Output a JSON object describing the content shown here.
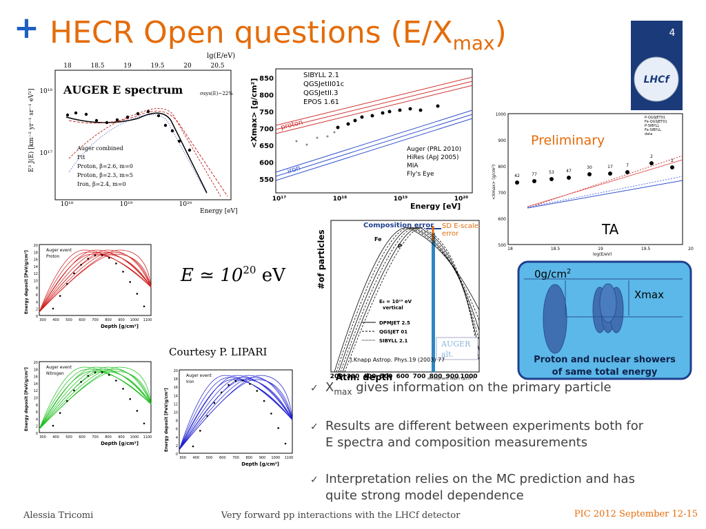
{
  "header": {
    "plus": "+",
    "title": "HECR Open questions (E/X",
    "title_sub": "max",
    "title_end": ")",
    "page_number": "4",
    "logo": "LHCf"
  },
  "auger_plot": {
    "label": "AUGER E spectrum",
    "top_axis_title": "lg(E/eV)",
    "top_ticks": [
      "18",
      "18.5",
      "19",
      "19.5",
      "20",
      "20.5"
    ],
    "y_title": "E³ J(E) [km⁻² yr⁻¹ sr⁻¹ eV²]",
    "y_ticks": [
      "10¹⁸",
      "10¹⁷"
    ],
    "x_ticks": [
      "10¹⁸",
      "10¹⁹",
      "10²⁰"
    ],
    "x_title": "Energy [eV]",
    "annotation": "σsys(E)~22%",
    "legend": [
      "Auger combined",
      "Fit",
      "Proton, β=2.6,  m=0",
      "Proton, β=2.3,  m=5",
      "Iron,     β=2.4,  m=0"
    ]
  },
  "xmax_plot": {
    "y_title": "<Xmax> [g/cm²]",
    "y_ticks": [
      "850",
      "800",
      "750",
      "700",
      "650",
      "600",
      "550"
    ],
    "x_ticks": [
      "10¹⁷",
      "10¹⁸",
      "10¹⁹",
      "10²⁰"
    ],
    "x_title": "Energy   [eV]",
    "models": [
      "SIBYLL 2.1",
      "QGSJetII01c",
      "QGSJetII.3",
      "EPOS 1.61"
    ],
    "proton": "proton",
    "iron": "iron",
    "experiments": [
      "Auger (PRL 2010)",
      "HiRes (ApJ 2005)",
      "MIA",
      "Fly's Eye"
    ]
  },
  "ta_plot": {
    "y_ticks": [
      "1000",
      "900",
      "800",
      "700",
      "600",
      "500"
    ],
    "x_ticks": [
      "18",
      "18.5",
      "19",
      "19.5",
      "20"
    ],
    "x_title": "log(E/eV)",
    "y_title": "<Xmax> (g/cm²)",
    "legend": [
      "P-QGSJET01",
      "Fe-QGSJET01",
      "P-SIBYLL",
      "Fe-SIBYLL",
      "data"
    ],
    "preliminary": "Preliminary",
    "counts": [
      "42",
      "77",
      "53",
      "47",
      "30",
      "17",
      "7",
      "2",
      "2"
    ],
    "label": "TA"
  },
  "profile_plots": [
    {
      "legend": [
        "Auger event",
        "Proton"
      ],
      "y_title": "Energy deposit  [PeV/g/cm²]",
      "y_ticks": [
        "20",
        "18",
        "16",
        "14",
        "12",
        "10",
        "8",
        "6",
        "4",
        "2",
        "0"
      ],
      "x_ticks": [
        "300",
        "400",
        "500",
        "600",
        "700",
        "800",
        "900",
        "1000",
        "1100"
      ],
      "x_title": "Depth   [g/cm²]"
    },
    {
      "legend": [
        "Auger event",
        "Nitrogen"
      ],
      "y_title": "Energy deposit  [PeV/g/cm²]",
      "y_ticks": [
        "20",
        "18",
        "16",
        "14",
        "12",
        "10",
        "8",
        "6",
        "4",
        "2",
        "0"
      ],
      "x_ticks": [
        "300",
        "400",
        "500",
        "600",
        "700",
        "800",
        "900",
        "1000",
        "1100"
      ],
      "x_title": "Depth   [g/cm²]"
    },
    {
      "legend": [
        "Auger event",
        "Iron"
      ],
      "y_title": "Energy deposit  [PeV/g/cm²]",
      "y_ticks": [
        "20",
        "18",
        "16",
        "14",
        "12",
        "10",
        "8",
        "6",
        "4",
        "2",
        "0"
      ],
      "x_ticks": [
        "300",
        "400",
        "500",
        "600",
        "700",
        "800",
        "900",
        "1000",
        "1100"
      ],
      "x_title": "Depth   [g/cm²]"
    }
  ],
  "formula": {
    "lhs": "E ≃ 10",
    "exp": "20",
    "unit": " eV"
  },
  "courtesy": "Courtesy P. LIPARI",
  "shower_plot": {
    "composition_error": "Composition error",
    "sd_error": "SD E-scale",
    "sd_error_2": "error",
    "y_title": "#of particles",
    "x_ticks": [
      "200",
      "300",
      "400",
      "500",
      "600",
      "700",
      "800",
      "900",
      "1000"
    ],
    "x_title_big": "Atm. depth",
    "x_title": "atmospheric depth (g/cm²)",
    "fe": "Fe",
    "p": "P",
    "energy": "E₀ = 10¹⁹ eV",
    "energy_2": "vertical",
    "legend": [
      "DPMJET 2.5",
      "QGSJET 01",
      "SIBYLL 2.1"
    ],
    "auger": "AUGER",
    "auger_2": "alt.",
    "citation": "J.Knapp Astrop. Phys.19 (2003) 77"
  },
  "shower_diagram": {
    "top": "0g/cm",
    "top_sup": "2",
    "xmax": "Xmax",
    "caption": [
      "Proton and nuclear showers",
      "of same total energy"
    ]
  },
  "bullets": [
    {
      "pre": "X",
      "sub": "max",
      "lines": [
        " gives information on the primary particle"
      ]
    },
    {
      "lines": [
        "Results are different between experiments both for",
        "E spectra and composition measurements"
      ]
    },
    {
      "lines": [
        "Interpretation relies on the MC prediction and has",
        "quite strong model dependence"
      ]
    }
  ],
  "footer": {
    "author": "Alessia Tricomi",
    "talk": "Very forward pp interactions with the LHCf detector",
    "event": "PIC 2012 September 12-15"
  }
}
